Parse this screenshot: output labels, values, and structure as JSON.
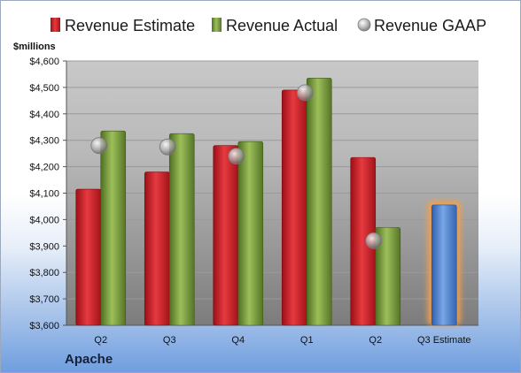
{
  "chart_data": {
    "type": "bar",
    "unit_label": "$millions",
    "company": "Apache",
    "categories": [
      "Q2",
      "Q3",
      "Q4",
      "Q1",
      "Q2",
      "Q3 Estimate"
    ],
    "ylim": [
      3600,
      4600
    ],
    "yticks": [
      3600,
      3700,
      3800,
      3900,
      4000,
      4100,
      4200,
      4300,
      4400,
      4500,
      4600
    ],
    "ytick_labels": [
      "$3,600",
      "$3,700",
      "$3,800",
      "$3,900",
      "$4,000",
      "$4,100",
      "$4,200",
      "$4,300",
      "$4,400",
      "$4,500",
      "$4,600"
    ],
    "grid": true,
    "legend_position": "top",
    "series": [
      {
        "name": "Revenue Estimate",
        "kind": "bar",
        "color": "#d4202a",
        "values": [
          4115,
          4180,
          4280,
          4490,
          4235,
          null
        ]
      },
      {
        "name": "Revenue Actual",
        "kind": "bar",
        "color": "#7fa043",
        "values": [
          4335,
          4325,
          4295,
          4535,
          3970,
          null
        ]
      },
      {
        "name": "Revenue GAAP",
        "kind": "marker",
        "color": "#a8a8a8",
        "values": [
          4280,
          4275,
          4240,
          4480,
          3920,
          null
        ]
      },
      {
        "name": "Q3 Estimate",
        "kind": "bar",
        "color": "#4a7fd0",
        "highlight": "#f5a04a",
        "values": [
          null,
          null,
          null,
          null,
          null,
          4055
        ]
      }
    ]
  }
}
